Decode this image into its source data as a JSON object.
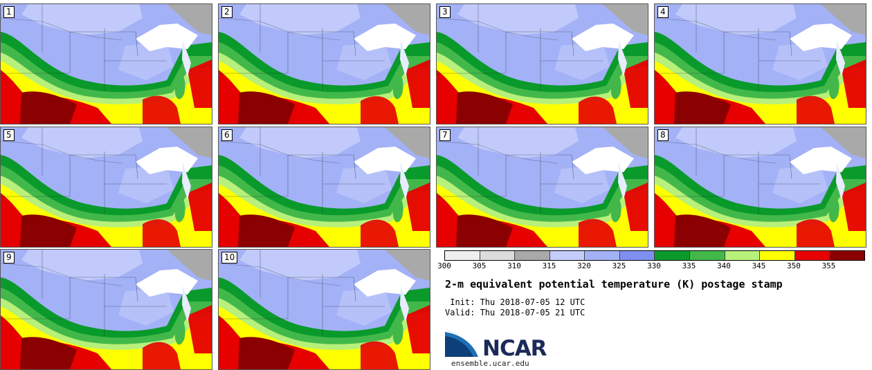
{
  "stamps": [
    "1",
    "2",
    "3",
    "4",
    "5",
    "6",
    "7",
    "8",
    "9",
    "10"
  ],
  "legend": {
    "colors": [
      "#efefef",
      "#dcdcdc",
      "#a9a9a9",
      "#c4cdfa",
      "#a3b1f7",
      "#7f8ff2",
      "#0a9a2c",
      "#43b84a",
      "#b7f07a",
      "#ffff00",
      "#e60000",
      "#8b0000"
    ],
    "ticks": [
      "300",
      "305",
      "310",
      "315",
      "320",
      "325",
      "330",
      "335",
      "340",
      "345",
      "350",
      "355"
    ]
  },
  "title": "2-m equivalent potential temperature (K) postage stamp",
  "init_line": " Init: Thu 2018-07-05 12 UTC",
  "valid_line": "Valid: Thu 2018-07-05 21 UTC",
  "logo_text": "NCAR",
  "site": "ensemble.ucar.edu"
}
